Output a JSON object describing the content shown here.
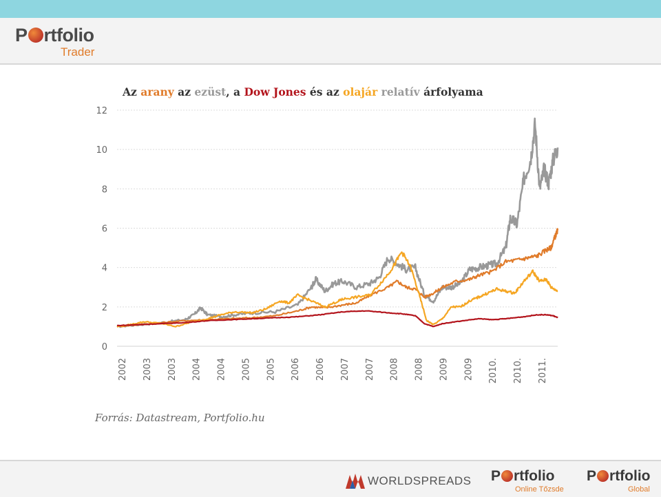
{
  "header": {
    "logo_text_before": "P",
    "logo_text_after": "rtfolio",
    "logo_sub": "Trader"
  },
  "footer": {
    "sponsor": "WORLDSPREADS",
    "logo1_before": "P",
    "logo1_after": "rtfolio",
    "logo1_sub": "Online Tőzsde",
    "logo2_before": "P",
    "logo2_after": "rtfolio",
    "logo2_sub": "Global"
  },
  "chart_data": {
    "type": "line",
    "title_parts": [
      {
        "text": "Az ",
        "color": "#333333"
      },
      {
        "text": "arany",
        "color": "#e07b2a"
      },
      {
        "text": " az ",
        "color": "#333333"
      },
      {
        "text": "ezüst",
        "color": "#999999"
      },
      {
        "text": ", a ",
        "color": "#333333"
      },
      {
        "text": "Dow Jones",
        "color": "#b3141c"
      },
      {
        "text": " és az ",
        "color": "#333333"
      },
      {
        "text": "olajár",
        "color": "#f5a623"
      },
      {
        "text": " relatív",
        "color": "#999999"
      },
      {
        "text": " árfolyama",
        "color": "#333333"
      }
    ],
    "source": "Forrás: Datastream, Portfolio.hu",
    "ylim": [
      0,
      12
    ],
    "yticks": [
      0,
      2,
      4,
      6,
      8,
      10,
      12
    ],
    "xlim": [
      2002.0,
      2011.75
    ],
    "xtick_labels": [
      "2002",
      "2003",
      "2003",
      "2004",
      "2004",
      "2005",
      "2005",
      "2006",
      "2006",
      "2007",
      "2007",
      "2008",
      "2008",
      "2009",
      "2009",
      "2010.",
      "2010.",
      "2011."
    ],
    "grid": true,
    "series": [
      {
        "name": "ezüst",
        "color": "#999999",
        "x": [
          2002.0,
          2002.5,
          2003.0,
          2003.5,
          2003.7,
          2003.85,
          2004.0,
          2004.3,
          2004.6,
          2005.0,
          2005.5,
          2006.0,
          2006.3,
          2006.4,
          2006.6,
          2006.8,
          2007.0,
          2007.3,
          2007.6,
          2007.8,
          2008.0,
          2008.2,
          2008.4,
          2008.6,
          2008.8,
          2009.0,
          2009.2,
          2009.4,
          2009.6,
          2009.8,
          2010.0,
          2010.2,
          2010.4,
          2010.6,
          2010.7,
          2010.85,
          2011.0,
          2011.15,
          2011.25,
          2011.35,
          2011.45,
          2011.55,
          2011.65,
          2011.75
        ],
        "y": [
          1.0,
          1.1,
          1.2,
          1.35,
          1.6,
          1.95,
          1.6,
          1.5,
          1.6,
          1.7,
          1.75,
          2.1,
          3.0,
          3.4,
          2.8,
          3.2,
          3.3,
          3.0,
          3.2,
          3.5,
          4.5,
          4.2,
          3.9,
          4.0,
          2.6,
          2.3,
          3.0,
          3.0,
          3.2,
          3.9,
          4.0,
          4.1,
          4.2,
          5.0,
          6.5,
          6.2,
          8.5,
          9.5,
          11.3,
          8.0,
          9.0,
          8.3,
          9.5,
          10.1
        ]
      },
      {
        "name": "arany",
        "color": "#e07b2a",
        "x": [
          2002.0,
          2002.5,
          2003.0,
          2003.5,
          2004.0,
          2004.5,
          2005.0,
          2005.5,
          2006.0,
          2006.3,
          2006.6,
          2007.0,
          2007.3,
          2007.6,
          2008.0,
          2008.2,
          2008.4,
          2008.6,
          2008.8,
          2009.0,
          2009.2,
          2009.5,
          2009.8,
          2010.0,
          2010.3,
          2010.6,
          2010.9,
          2011.1,
          2011.3,
          2011.5,
          2011.6,
          2011.68,
          2011.75
        ],
        "y": [
          1.0,
          1.1,
          1.2,
          1.3,
          1.35,
          1.4,
          1.45,
          1.55,
          1.8,
          2.0,
          1.95,
          2.1,
          2.2,
          2.6,
          3.0,
          3.3,
          3.0,
          2.9,
          2.5,
          2.7,
          3.0,
          3.3,
          3.4,
          3.6,
          3.8,
          4.3,
          4.4,
          4.5,
          4.6,
          4.9,
          5.0,
          5.5,
          5.9
        ]
      },
      {
        "name": "olajár",
        "color": "#f5a623",
        "x": [
          2002.0,
          2002.3,
          2002.6,
          2003.0,
          2003.3,
          2003.6,
          2004.0,
          2004.3,
          2004.6,
          2005.0,
          2005.3,
          2005.6,
          2005.8,
          2006.0,
          2006.3,
          2006.6,
          2006.9,
          2007.0,
          2007.3,
          2007.6,
          2007.9,
          2008.1,
          2008.3,
          2008.5,
          2008.7,
          2008.85,
          2009.0,
          2009.2,
          2009.4,
          2009.6,
          2009.8,
          2010.0,
          2010.2,
          2010.4,
          2010.6,
          2010.8,
          2011.0,
          2011.2,
          2011.35,
          2011.5,
          2011.6,
          2011.75
        ],
        "y": [
          1.0,
          1.1,
          1.25,
          1.15,
          1.0,
          1.2,
          1.4,
          1.6,
          1.75,
          1.7,
          1.9,
          2.3,
          2.2,
          2.6,
          2.3,
          2.0,
          2.3,
          2.4,
          2.5,
          2.6,
          3.4,
          4.0,
          4.8,
          4.0,
          2.5,
          1.3,
          1.1,
          1.4,
          2.0,
          2.0,
          2.3,
          2.5,
          2.7,
          2.9,
          2.8,
          2.7,
          3.3,
          3.8,
          3.3,
          3.4,
          3.0,
          2.8
        ]
      },
      {
        "name": "Dow Jones",
        "color": "#b3141c",
        "x": [
          2002.0,
          2002.5,
          2003.0,
          2003.5,
          2004.0,
          2004.5,
          2005.0,
          2005.5,
          2006.0,
          2006.5,
          2007.0,
          2007.5,
          2008.0,
          2008.3,
          2008.6,
          2008.8,
          2009.0,
          2009.2,
          2009.5,
          2010.0,
          2010.3,
          2010.6,
          2011.0,
          2011.3,
          2011.5,
          2011.65,
          2011.75
        ],
        "y": [
          1.05,
          1.1,
          1.15,
          1.2,
          1.3,
          1.35,
          1.4,
          1.45,
          1.5,
          1.6,
          1.75,
          1.8,
          1.7,
          1.65,
          1.55,
          1.15,
          1.0,
          1.15,
          1.25,
          1.4,
          1.35,
          1.4,
          1.5,
          1.6,
          1.6,
          1.55,
          1.45
        ]
      }
    ]
  }
}
